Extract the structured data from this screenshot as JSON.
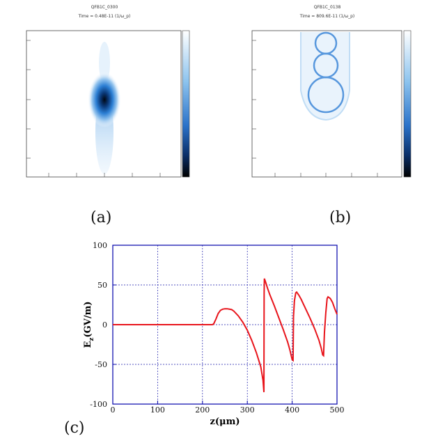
{
  "figure": {
    "panel_a": {
      "label": "(a)",
      "title": "QFB1C_0300",
      "time": "Time = 0.48E-11 (1/ω_p)"
    },
    "panel_b": {
      "label": "(b)",
      "title": "QFB1C_0138",
      "time": "Time = 809.6E-11 (1/ω_p)"
    },
    "panel_c": {
      "label": "(c)"
    }
  },
  "chart_data": {
    "type": "line",
    "xlabel": "z(μm)",
    "ylabel": "E_z(GV/m)",
    "xlim": [
      0,
      500
    ],
    "ylim": [
      -100,
      100
    ],
    "xticks": [
      0,
      100,
      200,
      300,
      400,
      500
    ],
    "yticks": [
      -100,
      -50,
      0,
      50,
      100
    ],
    "grid": true,
    "series": [
      {
        "color": "#e8141b",
        "x": [
          0,
          100,
          200,
          222,
          225,
          230,
          235,
          240,
          245,
          250,
          255,
          260,
          265,
          270,
          280,
          290,
          300,
          310,
          320,
          330,
          335,
          337,
          337.5,
          338,
          340,
          345,
          350,
          360,
          370,
          380,
          390,
          395,
          400,
          402,
          403,
          405,
          408,
          410,
          415,
          420,
          430,
          440,
          450,
          460,
          465,
          468,
          470,
          472,
          475,
          478,
          480,
          485,
          490,
          495,
          500
        ],
        "y": [
          0,
          0,
          0,
          0,
          1,
          7,
          14,
          18,
          19.5,
          20,
          20,
          19.5,
          19,
          17,
          11,
          3,
          -7,
          -20,
          -35,
          -53,
          -70,
          -85,
          40,
          58,
          55,
          46,
          38,
          24,
          9,
          -6,
          -22,
          -32,
          -44,
          -45,
          10,
          30,
          40,
          41,
          37,
          32,
          20,
          8,
          -5,
          -20,
          -30,
          -38,
          -39,
          -10,
          15,
          33,
          35,
          33,
          28,
          20,
          13
        ]
      }
    ]
  }
}
